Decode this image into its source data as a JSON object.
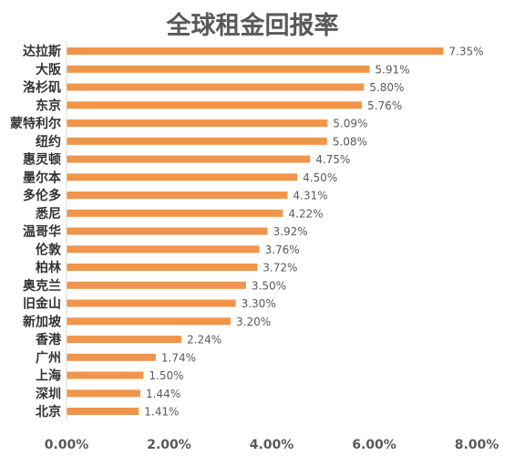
{
  "chart_data": {
    "type": "bar",
    "orientation": "horizontal",
    "title": "全球租金回报率",
    "categories": [
      "达拉斯",
      "大阪",
      "洛杉矶",
      "东京",
      "蒙特利尔",
      "纽约",
      "惠灵顿",
      "墨尔本",
      "多伦多",
      "悉尼",
      "温哥华",
      "伦敦",
      "柏林",
      "奥克兰",
      "旧金山",
      "新加坡",
      "香港",
      "广州",
      "上海",
      "深圳",
      "北京"
    ],
    "values": [
      7.35,
      5.91,
      5.8,
      5.76,
      5.09,
      5.08,
      4.75,
      4.5,
      4.31,
      4.22,
      3.92,
      3.76,
      3.72,
      3.5,
      3.3,
      3.2,
      2.24,
      1.74,
      1.5,
      1.44,
      1.41
    ],
    "value_labels": [
      "7.35%",
      "5.91%",
      "5.80%",
      "5.76%",
      "5.09%",
      "5.08%",
      "4.75%",
      "4.50%",
      "4.31%",
      "4.22%",
      "3.92%",
      "3.76%",
      "3.72%",
      "3.50%",
      "3.30%",
      "3.20%",
      "2.24%",
      "1.74%",
      "1.50%",
      "1.44%",
      "1.41%"
    ],
    "xlim": [
      0,
      8
    ],
    "x_ticks": [
      0,
      2,
      4,
      6,
      8
    ],
    "x_tick_labels": [
      "0.00%",
      "2.00%",
      "4.00%",
      "6.00%",
      "8.00%"
    ],
    "xlabel": "",
    "ylabel": "",
    "grid": false,
    "legend": "none",
    "bar_color": "#F0954A"
  }
}
